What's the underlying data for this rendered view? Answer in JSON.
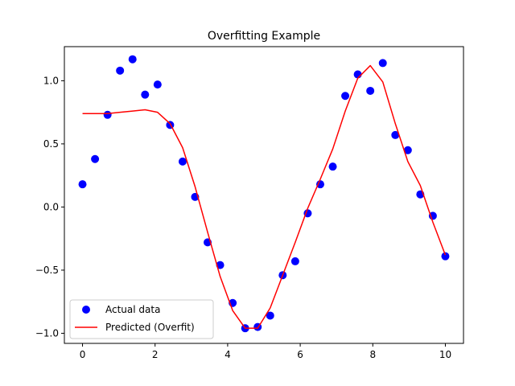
{
  "chart_data": {
    "type": "scatter",
    "title": "Overfitting Example",
    "xlabel": "",
    "ylabel": "",
    "xlim": [
      -0.5,
      10.5
    ],
    "ylim": [
      -1.08,
      1.27
    ],
    "xticks": [
      0,
      2,
      4,
      6,
      8,
      10
    ],
    "xtick_labels": [
      "0",
      "2",
      "4",
      "6",
      "8",
      "10"
    ],
    "yticks": [
      1.0,
      0.5,
      0.0,
      -0.5,
      -1.0
    ],
    "ytick_labels": [
      "1.0",
      "0.5",
      "0.0",
      "−0.5",
      "−1.0"
    ],
    "grid": false,
    "legend_position": "lower-left",
    "series": [
      {
        "name": "Actual data",
        "kind": "scatter",
        "color": "#0000ff",
        "x": [
          0,
          0.345,
          0.69,
          1.034,
          1.379,
          1.724,
          2.069,
          2.414,
          2.759,
          3.103,
          3.448,
          3.793,
          4.138,
          4.483,
          4.828,
          5.172,
          5.517,
          5.862,
          6.207,
          6.552,
          6.897,
          7.241,
          7.586,
          7.931,
          8.276,
          8.621,
          8.966,
          9.31,
          9.655,
          10
        ],
        "y": [
          0.18,
          0.38,
          0.73,
          1.08,
          1.17,
          0.89,
          0.97,
          0.65,
          0.36,
          0.08,
          -0.28,
          -0.46,
          -0.76,
          -0.96,
          -0.95,
          -0.86,
          -0.54,
          -0.43,
          -0.05,
          0.18,
          0.32,
          0.88,
          1.05,
          0.92,
          1.14,
          0.57,
          0.45,
          0.1,
          -0.07,
          -0.39
        ]
      },
      {
        "name": "Predicted (Overfit)",
        "kind": "line",
        "color": "#ff0000",
        "x": [
          0,
          0.345,
          0.69,
          1.034,
          1.379,
          1.724,
          2.069,
          2.414,
          2.759,
          3.103,
          3.448,
          3.793,
          4.138,
          4.483,
          4.828,
          5.172,
          5.517,
          5.862,
          6.207,
          6.552,
          6.897,
          7.241,
          7.586,
          7.931,
          8.276,
          8.621,
          8.966,
          9.31,
          9.655,
          10
        ],
        "y": [
          0.74,
          0.74,
          0.74,
          0.75,
          0.76,
          0.77,
          0.75,
          0.66,
          0.47,
          0.16,
          -0.2,
          -0.55,
          -0.82,
          -0.96,
          -0.96,
          -0.8,
          -0.54,
          -0.28,
          -0.01,
          0.22,
          0.46,
          0.76,
          1.02,
          1.12,
          0.99,
          0.66,
          0.36,
          0.17,
          -0.12,
          -0.38
        ]
      }
    ]
  }
}
